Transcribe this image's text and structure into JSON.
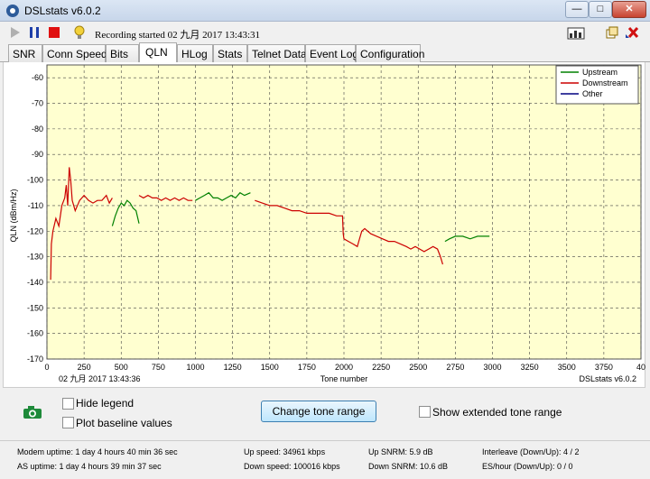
{
  "window": {
    "title": "DSLstats v6.0.2"
  },
  "toolbar": {
    "recording_text": "Recording started 02 九月 2017 13:43:31"
  },
  "tabs": [
    "SNR",
    "Conn Speed",
    "Bits",
    "QLN",
    "HLog",
    "Stats",
    "Telnet Data",
    "Event Log",
    "Configuration"
  ],
  "active_tab": "QLN",
  "chart": {
    "timestamp": "02 九月 2017 13:43:36",
    "watermark": "DSLstats v6.0.2"
  },
  "chart_data": {
    "type": "line",
    "xlabel": "Tone number",
    "ylabel": "QLN (dBm/Hz)",
    "xlim": [
      0,
      4000
    ],
    "ylim": [
      -170,
      -55
    ],
    "x_ticks": [
      "0",
      "250",
      "500",
      "750",
      "1000",
      "1250",
      "1500",
      "1750",
      "2000",
      "2250",
      "2500",
      "2750",
      "3000",
      "3250",
      "3500",
      "3750",
      "40"
    ],
    "y_ticks": [
      "-60",
      "-70",
      "-80",
      "-90",
      "-100",
      "-110",
      "-120",
      "-130",
      "-140",
      "-150",
      "-160",
      "-170"
    ],
    "grid": true,
    "legend_position": "top-right",
    "series": [
      {
        "name": "Upstream",
        "color": "#008000",
        "segments": [
          [
            [
              440,
              -118
            ],
            [
              460,
              -114
            ],
            [
              480,
              -111
            ],
            [
              500,
              -109
            ],
            [
              520,
              -110
            ],
            [
              540,
              -108
            ],
            [
              560,
              -109
            ],
            [
              580,
              -111
            ],
            [
              600,
              -112
            ],
            [
              620,
              -117
            ]
          ],
          [
            [
              1000,
              -108
            ],
            [
              1030,
              -107
            ],
            [
              1060,
              -106
            ],
            [
              1090,
              -105
            ],
            [
              1120,
              -107
            ],
            [
              1150,
              -107
            ],
            [
              1180,
              -108
            ],
            [
              1210,
              -107
            ],
            [
              1240,
              -106
            ],
            [
              1270,
              -107
            ],
            [
              1300,
              -105
            ],
            [
              1330,
              -106
            ],
            [
              1370,
              -105
            ]
          ],
          [
            [
              2680,
              -124
            ],
            [
              2710,
              -123
            ],
            [
              2750,
              -122
            ],
            [
              2800,
              -122
            ],
            [
              2850,
              -123
            ],
            [
              2900,
              -122
            ],
            [
              2950,
              -122
            ],
            [
              2980,
              -122
            ]
          ]
        ]
      },
      {
        "name": "Downstream",
        "color": "#cc0000",
        "segments": [
          [
            [
              25,
              -139
            ],
            [
              30,
              -125
            ],
            [
              40,
              -120
            ],
            [
              60,
              -115
            ],
            [
              80,
              -118
            ],
            [
              100,
              -110
            ],
            [
              120,
              -107
            ],
            [
              130,
              -102
            ],
            [
              140,
              -110
            ],
            [
              150,
              -95
            ],
            [
              160,
              -100
            ],
            [
              170,
              -108
            ],
            [
              190,
              -112
            ],
            [
              220,
              -108
            ],
            [
              250,
              -106
            ],
            [
              280,
              -108
            ],
            [
              310,
              -109
            ],
            [
              340,
              -108
            ],
            [
              370,
              -108
            ],
            [
              400,
              -106
            ],
            [
              420,
              -109
            ],
            [
              440,
              -107
            ]
          ],
          [
            [
              620,
              -106
            ],
            [
              650,
              -107
            ],
            [
              680,
              -106
            ],
            [
              710,
              -107
            ],
            [
              740,
              -107
            ],
            [
              770,
              -108
            ],
            [
              800,
              -107
            ],
            [
              830,
              -108
            ],
            [
              860,
              -107
            ],
            [
              890,
              -108
            ],
            [
              920,
              -107
            ],
            [
              950,
              -108
            ],
            [
              980,
              -108
            ]
          ],
          [
            [
              1400,
              -108
            ],
            [
              1450,
              -109
            ],
            [
              1500,
              -110
            ],
            [
              1550,
              -110
            ],
            [
              1600,
              -111
            ],
            [
              1650,
              -112
            ],
            [
              1700,
              -112
            ],
            [
              1750,
              -113
            ],
            [
              1800,
              -113
            ],
            [
              1850,
              -113
            ],
            [
              1900,
              -113
            ],
            [
              1950,
              -114
            ],
            [
              1990,
              -114
            ],
            [
              1995,
              -121
            ],
            [
              2000,
              -123
            ],
            [
              2030,
              -124
            ],
            [
              2060,
              -125
            ],
            [
              2090,
              -126
            ],
            [
              2100,
              -124
            ],
            [
              2120,
              -120
            ],
            [
              2140,
              -119
            ],
            [
              2180,
              -121
            ],
            [
              2220,
              -122
            ],
            [
              2260,
              -123
            ],
            [
              2300,
              -124
            ],
            [
              2340,
              -124
            ],
            [
              2380,
              -125
            ],
            [
              2420,
              -126
            ],
            [
              2450,
              -127
            ],
            [
              2480,
              -126
            ],
            [
              2510,
              -127
            ],
            [
              2540,
              -128
            ],
            [
              2570,
              -127
            ],
            [
              2600,
              -126
            ],
            [
              2630,
              -127
            ],
            [
              2650,
              -130
            ],
            [
              2665,
              -133
            ]
          ]
        ]
      },
      {
        "name": "Other",
        "color": "#000080",
        "segments": []
      }
    ]
  },
  "controls": {
    "hide_legend": "Hide legend",
    "plot_baseline": "Plot baseline values",
    "change_tone_range": "Change tone range",
    "extended_range": "Show extended tone range"
  },
  "status": {
    "modem_uptime": "Modem uptime: 1 day 4 hours 40 min 36 sec",
    "as_uptime": "AS uptime: 1 day 4 hours 39 min 37 sec",
    "up_speed": "Up speed: 34961 kbps",
    "down_speed": "Down speed: 100016 kbps",
    "up_snrm": "Up SNRM: 5.9 dB",
    "down_snrm": "Down SNRM: 10.6 dB",
    "interleave": "Interleave (Down/Up): 4 / 2",
    "es_hour": "ES/hour (Down/Up): 0 / 0"
  },
  "colors": {
    "plot_bg": "#ffffd0",
    "grid": "#444444",
    "title_bar": "#c7d6ea"
  }
}
